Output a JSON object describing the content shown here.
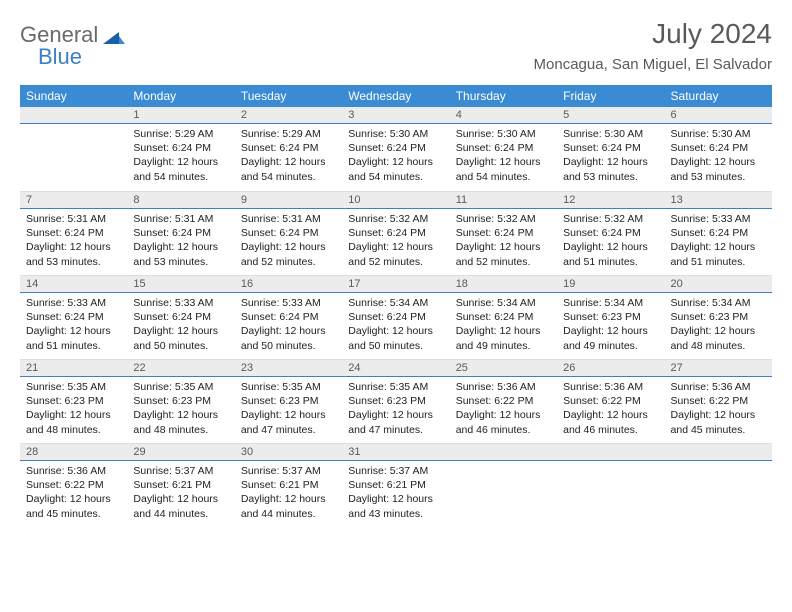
{
  "logo": {
    "text_general": "General",
    "text_blue": "Blue"
  },
  "title": "July 2024",
  "location": "Moncagua, San Miguel, El Salvador",
  "colors": {
    "header_bg": "#3b8bd4",
    "accent_line": "#3b7fc4",
    "daynum_bg": "#ececec",
    "text_gray": "#5a5a5a"
  },
  "day_headers": [
    "Sunday",
    "Monday",
    "Tuesday",
    "Wednesday",
    "Thursday",
    "Friday",
    "Saturday"
  ],
  "weeks": [
    [
      {
        "n": "",
        "sunrise": "",
        "sunset": "",
        "daylight": ""
      },
      {
        "n": "1",
        "sunrise": "Sunrise: 5:29 AM",
        "sunset": "Sunset: 6:24 PM",
        "daylight": "Daylight: 12 hours and 54 minutes."
      },
      {
        "n": "2",
        "sunrise": "Sunrise: 5:29 AM",
        "sunset": "Sunset: 6:24 PM",
        "daylight": "Daylight: 12 hours and 54 minutes."
      },
      {
        "n": "3",
        "sunrise": "Sunrise: 5:30 AM",
        "sunset": "Sunset: 6:24 PM",
        "daylight": "Daylight: 12 hours and 54 minutes."
      },
      {
        "n": "4",
        "sunrise": "Sunrise: 5:30 AM",
        "sunset": "Sunset: 6:24 PM",
        "daylight": "Daylight: 12 hours and 54 minutes."
      },
      {
        "n": "5",
        "sunrise": "Sunrise: 5:30 AM",
        "sunset": "Sunset: 6:24 PM",
        "daylight": "Daylight: 12 hours and 53 minutes."
      },
      {
        "n": "6",
        "sunrise": "Sunrise: 5:30 AM",
        "sunset": "Sunset: 6:24 PM",
        "daylight": "Daylight: 12 hours and 53 minutes."
      }
    ],
    [
      {
        "n": "7",
        "sunrise": "Sunrise: 5:31 AM",
        "sunset": "Sunset: 6:24 PM",
        "daylight": "Daylight: 12 hours and 53 minutes."
      },
      {
        "n": "8",
        "sunrise": "Sunrise: 5:31 AM",
        "sunset": "Sunset: 6:24 PM",
        "daylight": "Daylight: 12 hours and 53 minutes."
      },
      {
        "n": "9",
        "sunrise": "Sunrise: 5:31 AM",
        "sunset": "Sunset: 6:24 PM",
        "daylight": "Daylight: 12 hours and 52 minutes."
      },
      {
        "n": "10",
        "sunrise": "Sunrise: 5:32 AM",
        "sunset": "Sunset: 6:24 PM",
        "daylight": "Daylight: 12 hours and 52 minutes."
      },
      {
        "n": "11",
        "sunrise": "Sunrise: 5:32 AM",
        "sunset": "Sunset: 6:24 PM",
        "daylight": "Daylight: 12 hours and 52 minutes."
      },
      {
        "n": "12",
        "sunrise": "Sunrise: 5:32 AM",
        "sunset": "Sunset: 6:24 PM",
        "daylight": "Daylight: 12 hours and 51 minutes."
      },
      {
        "n": "13",
        "sunrise": "Sunrise: 5:33 AM",
        "sunset": "Sunset: 6:24 PM",
        "daylight": "Daylight: 12 hours and 51 minutes."
      }
    ],
    [
      {
        "n": "14",
        "sunrise": "Sunrise: 5:33 AM",
        "sunset": "Sunset: 6:24 PM",
        "daylight": "Daylight: 12 hours and 51 minutes."
      },
      {
        "n": "15",
        "sunrise": "Sunrise: 5:33 AM",
        "sunset": "Sunset: 6:24 PM",
        "daylight": "Daylight: 12 hours and 50 minutes."
      },
      {
        "n": "16",
        "sunrise": "Sunrise: 5:33 AM",
        "sunset": "Sunset: 6:24 PM",
        "daylight": "Daylight: 12 hours and 50 minutes."
      },
      {
        "n": "17",
        "sunrise": "Sunrise: 5:34 AM",
        "sunset": "Sunset: 6:24 PM",
        "daylight": "Daylight: 12 hours and 50 minutes."
      },
      {
        "n": "18",
        "sunrise": "Sunrise: 5:34 AM",
        "sunset": "Sunset: 6:24 PM",
        "daylight": "Daylight: 12 hours and 49 minutes."
      },
      {
        "n": "19",
        "sunrise": "Sunrise: 5:34 AM",
        "sunset": "Sunset: 6:23 PM",
        "daylight": "Daylight: 12 hours and 49 minutes."
      },
      {
        "n": "20",
        "sunrise": "Sunrise: 5:34 AM",
        "sunset": "Sunset: 6:23 PM",
        "daylight": "Daylight: 12 hours and 48 minutes."
      }
    ],
    [
      {
        "n": "21",
        "sunrise": "Sunrise: 5:35 AM",
        "sunset": "Sunset: 6:23 PM",
        "daylight": "Daylight: 12 hours and 48 minutes."
      },
      {
        "n": "22",
        "sunrise": "Sunrise: 5:35 AM",
        "sunset": "Sunset: 6:23 PM",
        "daylight": "Daylight: 12 hours and 48 minutes."
      },
      {
        "n": "23",
        "sunrise": "Sunrise: 5:35 AM",
        "sunset": "Sunset: 6:23 PM",
        "daylight": "Daylight: 12 hours and 47 minutes."
      },
      {
        "n": "24",
        "sunrise": "Sunrise: 5:35 AM",
        "sunset": "Sunset: 6:23 PM",
        "daylight": "Daylight: 12 hours and 47 minutes."
      },
      {
        "n": "25",
        "sunrise": "Sunrise: 5:36 AM",
        "sunset": "Sunset: 6:22 PM",
        "daylight": "Daylight: 12 hours and 46 minutes."
      },
      {
        "n": "26",
        "sunrise": "Sunrise: 5:36 AM",
        "sunset": "Sunset: 6:22 PM",
        "daylight": "Daylight: 12 hours and 46 minutes."
      },
      {
        "n": "27",
        "sunrise": "Sunrise: 5:36 AM",
        "sunset": "Sunset: 6:22 PM",
        "daylight": "Daylight: 12 hours and 45 minutes."
      }
    ],
    [
      {
        "n": "28",
        "sunrise": "Sunrise: 5:36 AM",
        "sunset": "Sunset: 6:22 PM",
        "daylight": "Daylight: 12 hours and 45 minutes."
      },
      {
        "n": "29",
        "sunrise": "Sunrise: 5:37 AM",
        "sunset": "Sunset: 6:21 PM",
        "daylight": "Daylight: 12 hours and 44 minutes."
      },
      {
        "n": "30",
        "sunrise": "Sunrise: 5:37 AM",
        "sunset": "Sunset: 6:21 PM",
        "daylight": "Daylight: 12 hours and 44 minutes."
      },
      {
        "n": "31",
        "sunrise": "Sunrise: 5:37 AM",
        "sunset": "Sunset: 6:21 PM",
        "daylight": "Daylight: 12 hours and 43 minutes."
      },
      {
        "n": "",
        "sunrise": "",
        "sunset": "",
        "daylight": ""
      },
      {
        "n": "",
        "sunrise": "",
        "sunset": "",
        "daylight": ""
      },
      {
        "n": "",
        "sunrise": "",
        "sunset": "",
        "daylight": ""
      }
    ]
  ]
}
